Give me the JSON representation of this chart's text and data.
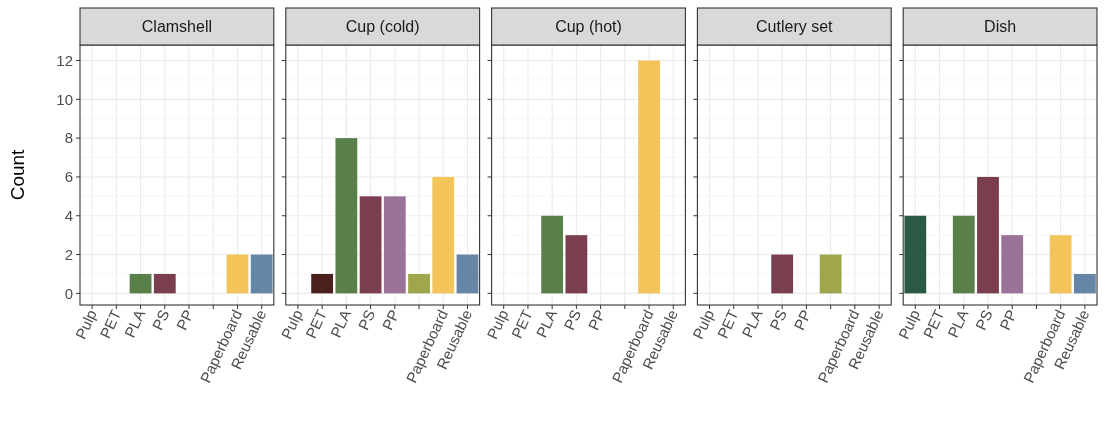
{
  "chart_data": [
    {
      "type": "bar",
      "title": "Clamshell",
      "ylabel": "Count",
      "categories": [
        "Pulp",
        "PET",
        "PLA",
        "PS",
        "PP",
        null,
        "Paperboard",
        "Reusable"
      ],
      "values": [
        null,
        null,
        1,
        1,
        null,
        null,
        2,
        2
      ],
      "colors": [
        null,
        null,
        "#5a8049",
        "#7b3e4f",
        null,
        null,
        "#f2c45a",
        "#6686a8"
      ],
      "ylim": [
        -0.6,
        12.8
      ],
      "yticks": [
        0,
        2,
        4,
        6,
        8,
        10,
        12
      ],
      "grid": true
    },
    {
      "type": "bar",
      "title": "Cup (cold)",
      "categories": [
        "Pulp",
        "PET",
        "PLA",
        "PS",
        "PP",
        null,
        "Paperboard",
        "Reusable"
      ],
      "values": [
        null,
        1,
        8,
        5,
        5,
        1,
        6,
        2
      ],
      "colors": [
        null,
        "#4a1f1c",
        "#5a8049",
        "#7b3e4f",
        "#9c7398",
        "#a0a64b",
        "#f2c45a",
        "#6686a8"
      ],
      "ylim": [
        -0.6,
        12.8
      ],
      "yticks": [
        0,
        2,
        4,
        6,
        8,
        10,
        12
      ],
      "grid": true,
      "tick_labels": "x"
    },
    {
      "type": "bar",
      "title": "Cup (hot)",
      "categories": [
        "Pulp",
        "PET",
        "PLA",
        "PS",
        "PP",
        null,
        "Paperboard",
        "Reusable"
      ],
      "values": [
        null,
        null,
        4,
        3,
        null,
        null,
        12,
        null
      ],
      "colors": [
        null,
        null,
        "#5a8049",
        "#7b3e4f",
        null,
        null,
        "#f2c45a",
        null
      ],
      "ylim": [
        -0.6,
        12.8
      ],
      "yticks": [
        0,
        2,
        4,
        6,
        8,
        10,
        12
      ],
      "grid": true,
      "tick_labels": "x"
    },
    {
      "type": "bar",
      "title": "Cutlery set",
      "categories": [
        "Pulp",
        "PET",
        "PLA",
        "PS",
        "PP",
        null,
        "Paperboard",
        "Reusable"
      ],
      "values": [
        null,
        null,
        null,
        2,
        null,
        2,
        null,
        null
      ],
      "colors": [
        null,
        null,
        null,
        "#7b3e4f",
        null,
        "#a0a64b",
        null,
        null
      ],
      "ylim": [
        -0.6,
        12.8
      ],
      "yticks": [
        0,
        2,
        4,
        6,
        8,
        10,
        12
      ],
      "grid": true,
      "tick_labels": "x"
    },
    {
      "type": "bar",
      "title": "Dish",
      "categories": [
        "Pulp",
        "PET",
        "PLA",
        "PS",
        "PP",
        null,
        "Paperboard",
        "Reusable"
      ],
      "values": [
        4,
        null,
        4,
        6,
        3,
        null,
        3,
        1
      ],
      "colors": [
        "#2b5a44",
        null,
        "#5a8049",
        "#7b3e4f",
        "#9c7398",
        null,
        "#f2c45a",
        "#6686a8"
      ],
      "ylim": [
        -0.6,
        12.8
      ],
      "yticks": [
        0,
        2,
        4,
        6,
        8,
        10,
        12
      ],
      "grid": true,
      "tick_labels": "x"
    }
  ]
}
